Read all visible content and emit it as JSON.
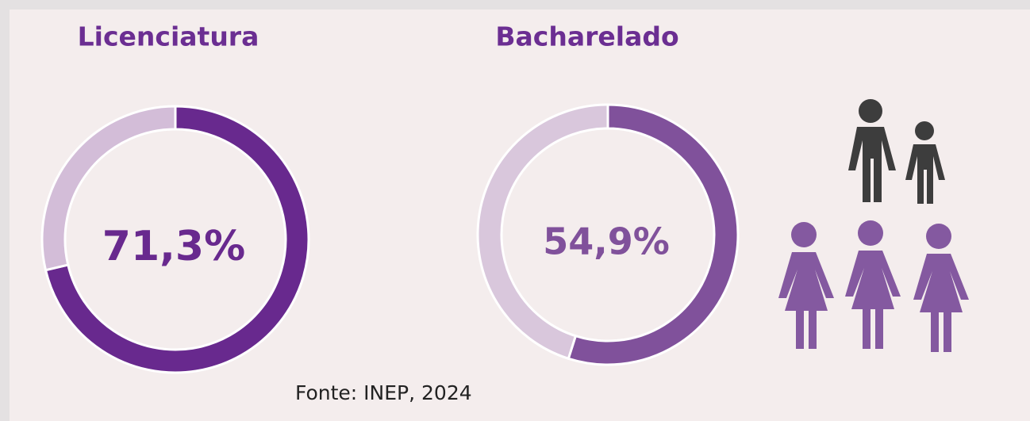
{
  "chart_data": [
    {
      "type": "donut",
      "title": "Licenciatura",
      "values": [
        71.3,
        28.7
      ],
      "value_labels": [
        "71,3%",
        null
      ],
      "colors": [
        "#68298e",
        "#d3bdd8"
      ]
    },
    {
      "type": "donut",
      "title": "Bacharelado",
      "values": [
        54.9,
        45.1
      ],
      "value_labels": [
        "54,9%",
        null
      ],
      "colors": [
        "#80519b",
        "#d9c7dc"
      ]
    }
  ],
  "source": "Fonte: INEP, 2024"
}
